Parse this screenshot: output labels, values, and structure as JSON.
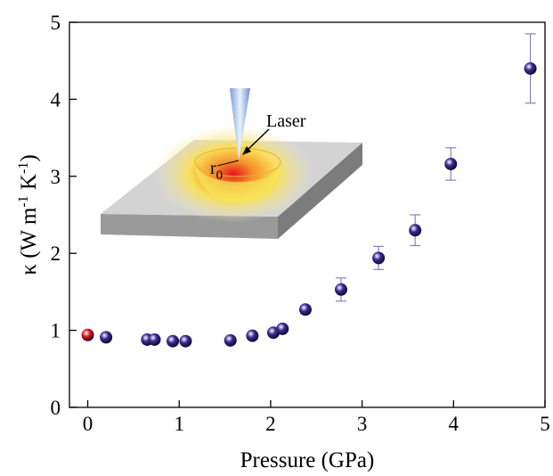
{
  "chart_data": {
    "type": "scatter",
    "x": [
      0,
      0.2,
      0.65,
      0.73,
      0.93,
      1.07,
      1.56,
      1.8,
      2.03,
      2.13,
      2.38,
      2.77,
      3.18,
      3.58,
      3.97,
      4.84
    ],
    "values": [
      0.94,
      0.91,
      0.88,
      0.88,
      0.86,
      0.86,
      0.87,
      0.93,
      0.97,
      1.02,
      1.27,
      1.53,
      1.94,
      2.3,
      3.16,
      4.4
    ],
    "errors": [
      null,
      null,
      null,
      null,
      null,
      null,
      null,
      null,
      null,
      null,
      0.05,
      0.15,
      0.15,
      0.2,
      0.21,
      0.45
    ],
    "colors": [
      "#e8141c",
      "#3b2a96",
      "#3b2a96",
      "#3b2a96",
      "#3b2a96",
      "#3b2a96",
      "#3b2a96",
      "#3b2a96",
      "#3b2a96",
      "#3b2a96",
      "#3b2a96",
      "#3b2a96",
      "#3b2a96",
      "#3b2a96",
      "#3b2a96",
      "#3b2a96"
    ],
    "error_color": "#8b7fc0",
    "xlim": [
      -0.2,
      5
    ],
    "xticks": [
      0,
      1,
      2,
      3,
      4,
      5
    ],
    "ylim": [
      0,
      5
    ],
    "yticks": [
      0,
      1,
      2,
      3,
      4,
      5
    ],
    "x_label": "Pressure (GPa)",
    "y_label": [
      "κ (W m",
      "-1",
      " K",
      "-1",
      ")"
    ],
    "inset": {
      "laser_label": "Laser",
      "radius_label": "r",
      "radius_subscript": "0"
    }
  }
}
